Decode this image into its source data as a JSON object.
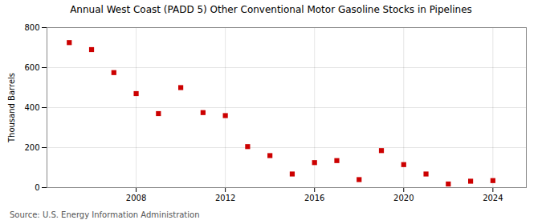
{
  "chart_data": {
    "type": "scatter",
    "title": "Annual West Coast (PADD 5) Other Conventional Motor Gasoline Stocks in Pipelines",
    "ylabel": "Thousand Barrels",
    "source": "Source: U.S. Energy Information Administration",
    "x": [
      2005,
      2006,
      2007,
      2008,
      2009,
      2010,
      2011,
      2012,
      2013,
      2014,
      2015,
      2016,
      2017,
      2018,
      2019,
      2020,
      2021,
      2022,
      2023,
      2024
    ],
    "values": [
      725,
      690,
      575,
      470,
      370,
      500,
      375,
      360,
      205,
      160,
      68,
      125,
      135,
      40,
      185,
      115,
      68,
      18,
      32,
      35
    ],
    "color": "#cc0000",
    "marker": "square",
    "xlim": [
      2004.0,
      2025.5
    ],
    "xticks": [
      2008,
      2012,
      2016,
      2020,
      2024
    ],
    "ylim": [
      0,
      800
    ],
    "yticks": [
      0,
      200,
      400,
      600,
      800
    ],
    "grid": true
  }
}
